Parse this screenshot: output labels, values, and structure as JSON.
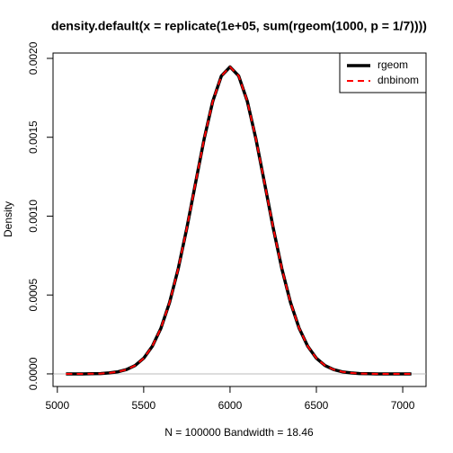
{
  "chart_data": {
    "type": "line",
    "title": "density.default(x = replicate(1e+05, sum(rgeom(1000, p = 1/7))))",
    "x_label": "N = 100000   Bandwidth = 18.46",
    "y_label": "Density",
    "x": [
      5050,
      5100,
      5150,
      5200,
      5250,
      5300,
      5350,
      5400,
      5450,
      5500,
      5550,
      5600,
      5650,
      5700,
      5750,
      5800,
      5850,
      5900,
      5950,
      6000,
      6050,
      6100,
      6150,
      6200,
      6250,
      6300,
      6350,
      6400,
      6450,
      6500,
      6550,
      6600,
      6650,
      6700,
      6750,
      6800,
      6850,
      6900,
      6950,
      7000,
      7050
    ],
    "series": [
      {
        "name": "rgeom",
        "color": "#000000",
        "dash": false,
        "values": [
          0,
          0,
          0,
          1e-06,
          2e-06,
          6e-06,
          1.3e-05,
          2.7e-05,
          5.3e-05,
          9.9e-05,
          0.000175,
          0.00029,
          0.000453,
          0.000667,
          0.000925,
          0.001209,
          0.001489,
          0.001728,
          0.001889,
          0.001946,
          0.001889,
          0.001728,
          0.001489,
          0.001209,
          0.000925,
          0.000667,
          0.000453,
          0.00029,
          0.000175,
          9.9e-05,
          5.3e-05,
          2.7e-05,
          1.3e-05,
          6e-06,
          2e-06,
          1e-06,
          0,
          0,
          0,
          0,
          0
        ]
      },
      {
        "name": "dnbinom",
        "color": "#ff0000",
        "dash": true,
        "values": [
          0,
          0,
          0,
          1e-06,
          2e-06,
          6e-06,
          1.3e-05,
          2.7e-05,
          5.3e-05,
          9.9e-05,
          0.000175,
          0.00029,
          0.000453,
          0.000667,
          0.000925,
          0.001209,
          0.001489,
          0.001728,
          0.001889,
          0.001946,
          0.001889,
          0.001728,
          0.001489,
          0.001209,
          0.000925,
          0.000667,
          0.000453,
          0.00029,
          0.000175,
          9.9e-05,
          5.3e-05,
          2.7e-05,
          1.3e-05,
          6e-06,
          2e-06,
          1e-06,
          0,
          0,
          0,
          0,
          0
        ]
      }
    ],
    "xlim": [
      4975,
      7135
    ],
    "ylim": [
      -8e-05,
      0.002034
    ],
    "xticks": [
      5000,
      5500,
      6000,
      6500,
      7000
    ],
    "yticks": [
      {
        "value": 0,
        "label": "0.0000"
      },
      0.0005,
      {
        "value": 0.001,
        "label": "0.0010"
      },
      0.0015,
      {
        "value": 0.002,
        "label": "0.0020"
      }
    ],
    "legend": "top-right"
  }
}
